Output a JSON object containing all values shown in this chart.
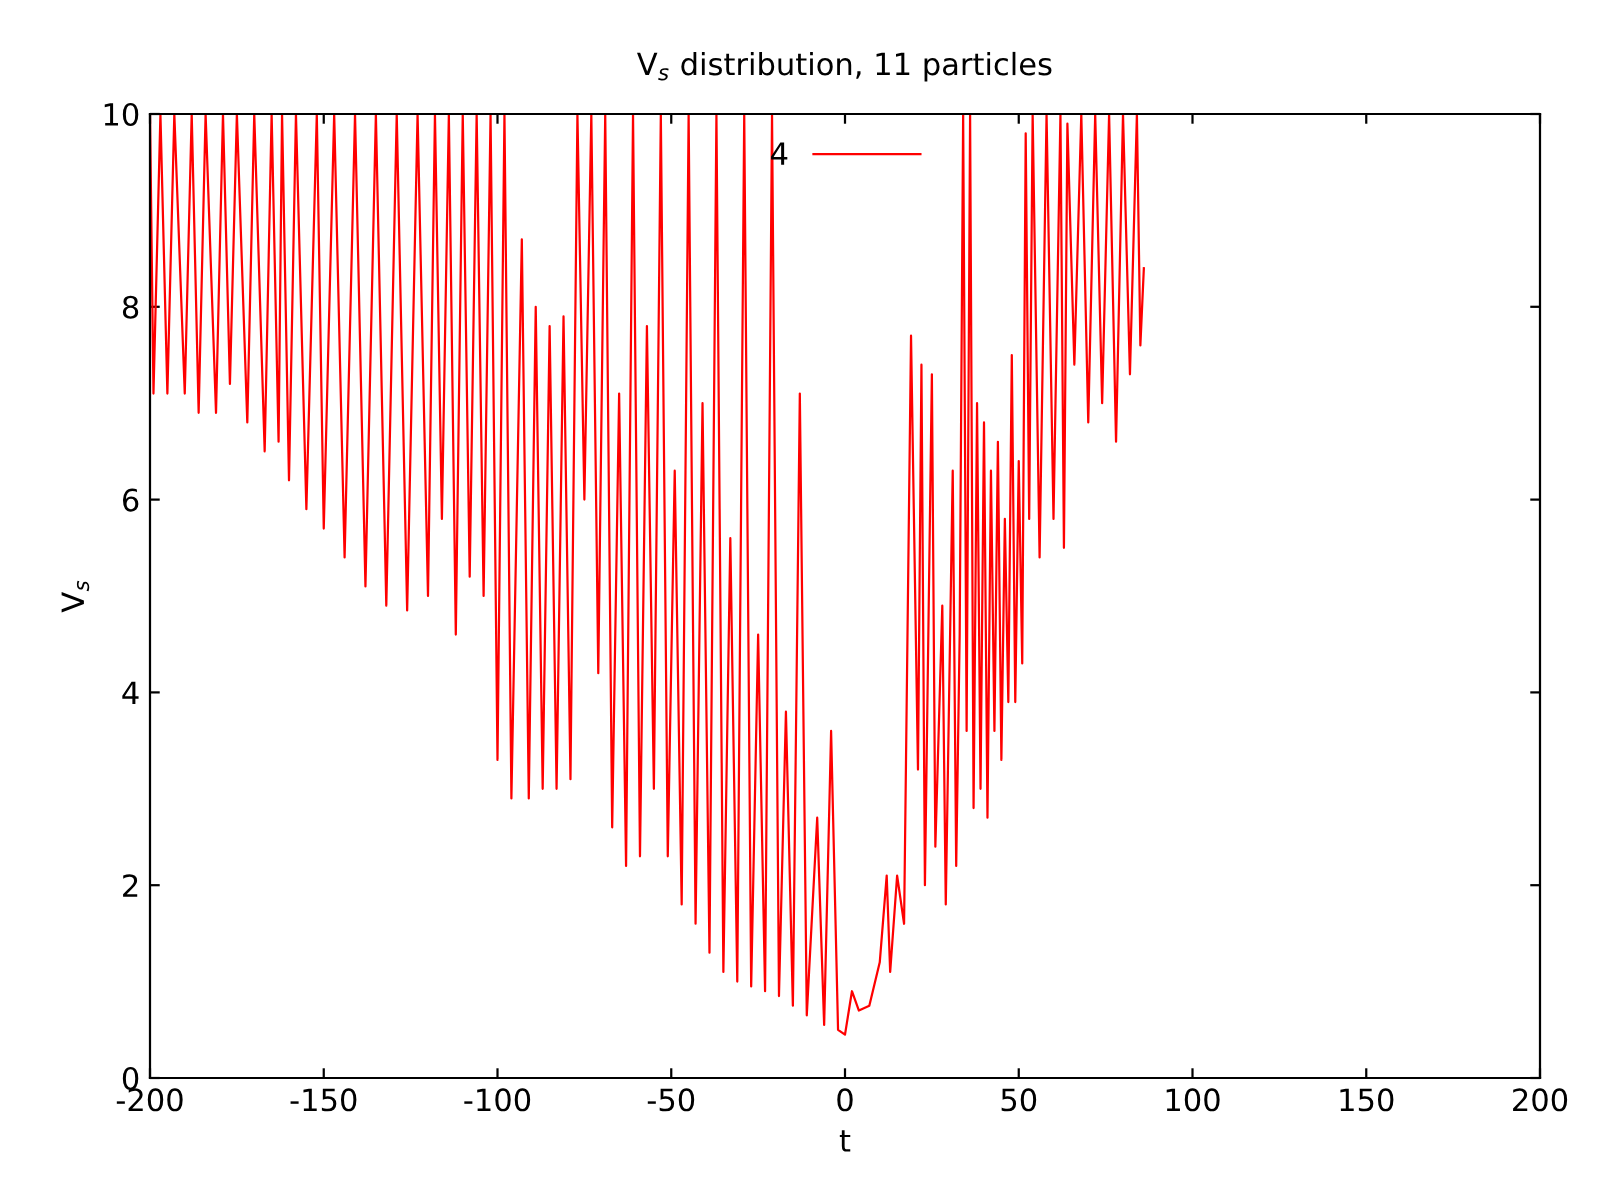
{
  "chart_data": {
    "type": "line",
    "title": "V$_{s}$ distribution, 11 particles",
    "xlabel": "t",
    "ylabel": "V$_{s}$",
    "xlim": [
      -200,
      200
    ],
    "xticks": [
      -200,
      -150,
      -100,
      -50,
      0,
      50,
      100,
      150,
      200
    ],
    "ylim": [
      0,
      10
    ],
    "yticks": [
      0,
      2,
      4,
      6,
      8,
      10
    ],
    "grid": false,
    "legend": "top",
    "series": [
      {
        "name": "4",
        "color": "#ff0000",
        "x": [
          -200,
          -199,
          -197,
          -195,
          -193,
          -190,
          -188,
          -186,
          -184,
          -181,
          -179,
          -177,
          -175,
          -172,
          -170,
          -167,
          -165,
          -163,
          -162,
          -160,
          -158,
          -155,
          -152,
          -150,
          -147,
          -144,
          -141,
          -138,
          -135,
          -132,
          -129,
          -126,
          -123,
          -120,
          -118,
          -116,
          -114,
          -112,
          -110,
          -108,
          -106,
          -104,
          -102,
          -100,
          -98,
          -96,
          -93,
          -91,
          -89,
          -87,
          -85,
          -83,
          -81,
          -79,
          -77,
          -75,
          -73,
          -71,
          -69,
          -67,
          -65,
          -63,
          -61,
          -59,
          -57,
          -55,
          -53,
          -51,
          -49,
          -47,
          -45,
          -43,
          -41,
          -39,
          -37,
          -35,
          -33,
          -31,
          -29,
          -27,
          -25,
          -23,
          -21,
          -19,
          -17,
          -15,
          -13,
          -11,
          -8,
          -6,
          -4,
          -2,
          0,
          2,
          4,
          7,
          10,
          12,
          13,
          15,
          17,
          19,
          21,
          22,
          23,
          25,
          26,
          28,
          29,
          31,
          32,
          33,
          34,
          35,
          36,
          37,
          38,
          39,
          40,
          41,
          42,
          43,
          44,
          45,
          46,
          47,
          48,
          49,
          50,
          51,
          52,
          53,
          54,
          56,
          58,
          60,
          62,
          63,
          64,
          66,
          68,
          70,
          72,
          74,
          76,
          78,
          80,
          82,
          84,
          85,
          86
        ],
        "values": [
          10,
          7.1,
          10,
          7.1,
          10,
          7.1,
          10,
          6.9,
          10,
          6.9,
          10,
          7.2,
          10,
          6.8,
          10,
          6.5,
          10,
          6.6,
          10,
          6.2,
          10,
          5.9,
          10,
          5.7,
          10,
          5.4,
          10,
          5.1,
          10,
          4.9,
          10,
          4.85,
          10,
          5.0,
          10,
          5.8,
          10,
          4.6,
          10,
          5.2,
          10,
          5.0,
          10,
          3.3,
          10,
          2.9,
          8.7,
          2.9,
          8.0,
          3.0,
          7.8,
          3.0,
          7.9,
          3.1,
          10,
          6.0,
          10,
          4.2,
          10,
          2.6,
          7.1,
          2.2,
          10,
          2.3,
          7.8,
          3.0,
          10,
          2.3,
          6.3,
          1.8,
          10,
          1.6,
          7.0,
          1.3,
          10,
          1.1,
          5.6,
          1.0,
          10,
          0.95,
          4.6,
          0.9,
          10,
          0.85,
          3.8,
          0.75,
          7.1,
          0.65,
          2.7,
          0.55,
          3.6,
          0.5,
          0.45,
          0.9,
          0.7,
          0.75,
          1.2,
          2.1,
          1.1,
          2.1,
          1.6,
          7.7,
          3.2,
          7.4,
          2.0,
          7.3,
          2.4,
          4.9,
          1.8,
          6.3,
          2.2,
          4.6,
          10,
          3.6,
          10,
          2.8,
          7.0,
          3.0,
          6.8,
          2.7,
          6.3,
          3.6,
          6.6,
          3.3,
          5.8,
          3.9,
          7.5,
          3.9,
          6.4,
          4.3,
          9.8,
          5.8,
          10,
          5.4,
          10,
          5.8,
          10,
          5.5,
          9.9,
          7.4,
          10,
          6.8,
          10,
          7.0,
          10,
          6.6,
          10,
          7.3,
          10,
          7.6,
          8.4
        ]
      }
    ]
  }
}
